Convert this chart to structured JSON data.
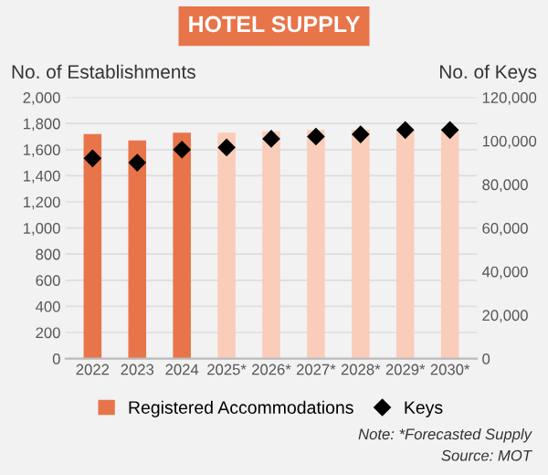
{
  "chart_data": {
    "type": "bar",
    "title": "HOTEL SUPPLY",
    "ylabel": "No. of Establishments",
    "y2label": "No. of Keys",
    "categories": [
      "2022",
      "2023",
      "2024",
      "2025*",
      "2026*",
      "2027*",
      "2028*",
      "2029*",
      "2030*"
    ],
    "series": [
      {
        "name": "Registered Accommodations",
        "color": "#e8744a",
        "colors": [
          "#e8744a",
          "#e8744a",
          "#e8744a",
          "#f9cdb9",
          "#f9cdb9",
          "#f9cdb9",
          "#f9cdb9",
          "#f9cdb9",
          "#f9cdb9"
        ],
        "values": [
          1720,
          1670,
          1730,
          1730,
          1740,
          1750,
          1750,
          1760,
          1760
        ]
      },
      {
        "name": "Keys",
        "type": "scatter",
        "axis": "y2",
        "color": "#000000",
        "marker": "diamond",
        "values": [
          92000,
          90000,
          96000,
          97000,
          101000,
          102000,
          103000,
          105000,
          105000
        ]
      }
    ],
    "ylim": [
      0,
      2000
    ],
    "yticks": [
      0,
      {
        "value": 200,
        "label": "200"
      },
      {
        "value": 400,
        "label": "400"
      },
      {
        "value": 600,
        "label": "600"
      },
      {
        "value": 800,
        "label": "800"
      },
      {
        "value": 1000,
        "label": "1,000"
      },
      {
        "value": 1200,
        "label": "1,200"
      },
      {
        "value": 1400,
        "label": "1,400"
      },
      {
        "value": 1600,
        "label": "1,600"
      },
      {
        "value": 1800,
        "label": "1,800"
      },
      {
        "value": 2000,
        "label": "2,000"
      }
    ],
    "y2lim": [
      0,
      120000
    ],
    "y2ticks": [
      0,
      {
        "value": 20000,
        "label": "20,000"
      },
      {
        "value": 40000,
        "label": "40,000"
      },
      {
        "value": 60000,
        "label": "60,000"
      },
      {
        "value": 80000,
        "label": "80,000"
      },
      {
        "value": 100000,
        "label": "100,000"
      },
      {
        "value": 120000,
        "label": "120,000"
      }
    ],
    "grid": "y",
    "legend": "bottom",
    "annotations": [
      "Note: *Forecasted Supply",
      "Source: MOT"
    ]
  }
}
